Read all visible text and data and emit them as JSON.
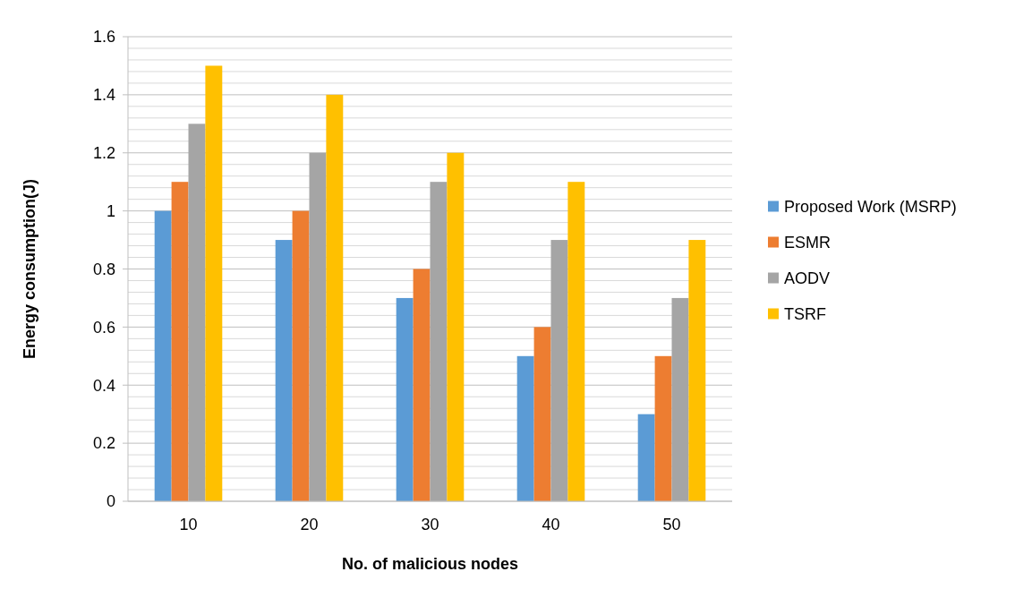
{
  "chart_data": {
    "type": "bar",
    "xlabel": "No. of malicious nodes",
    "ylabel": "Energy consumption(J)",
    "categories": [
      "10",
      "20",
      "30",
      "40",
      "50"
    ],
    "series": [
      {
        "name": "Proposed Work (MSRP)",
        "color": "#5b9bd5",
        "values": [
          1.0,
          0.9,
          0.7,
          0.5,
          0.3
        ]
      },
      {
        "name": "ESMR",
        "color": "#ed7d31",
        "values": [
          1.1,
          1.0,
          0.8,
          0.6,
          0.5
        ]
      },
      {
        "name": "AODV",
        "color": "#a5a5a5",
        "values": [
          1.3,
          1.2,
          1.1,
          0.9,
          0.7
        ]
      },
      {
        "name": "TSRF",
        "color": "#ffc000",
        "values": [
          1.5,
          1.4,
          1.2,
          1.1,
          0.9
        ]
      }
    ],
    "ylim": [
      0,
      1.6
    ],
    "yticks": [
      {
        "value": 0,
        "label": "0"
      },
      {
        "value": 0.04,
        "label": null
      },
      {
        "value": 0.08,
        "label": null
      },
      {
        "value": 0.12,
        "label": null
      },
      {
        "value": 0.16,
        "label": null
      },
      {
        "value": 0.2,
        "label": "0.2"
      },
      {
        "value": 0.24,
        "label": null
      },
      {
        "value": 0.28,
        "label": null
      },
      {
        "value": 0.32,
        "label": null
      },
      {
        "value": 0.36,
        "label": null
      },
      {
        "value": 0.4,
        "label": "0.4"
      },
      {
        "value": 0.44,
        "label": null
      },
      {
        "value": 0.48,
        "label": null
      },
      {
        "value": 0.52,
        "label": null
      },
      {
        "value": 0.56,
        "label": null
      },
      {
        "value": 0.6,
        "label": "0.6"
      },
      {
        "value": 0.64,
        "label": null
      },
      {
        "value": 0.68,
        "label": null
      },
      {
        "value": 0.72,
        "label": null
      },
      {
        "value": 0.76,
        "label": null
      },
      {
        "value": 0.8,
        "label": "0.8"
      },
      {
        "value": 0.84,
        "label": null
      },
      {
        "value": 0.88,
        "label": null
      },
      {
        "value": 0.92,
        "label": null
      },
      {
        "value": 0.96,
        "label": null
      },
      {
        "value": 1,
        "label": "1"
      },
      {
        "value": 1.04,
        "label": null
      },
      {
        "value": 1.08,
        "label": null
      },
      {
        "value": 1.12,
        "label": null
      },
      {
        "value": 1.16,
        "label": null
      },
      {
        "value": 1.2,
        "label": "1.2"
      },
      {
        "value": 1.24,
        "label": null
      },
      {
        "value": 1.28,
        "label": null
      },
      {
        "value": 1.32,
        "label": null
      },
      {
        "value": 1.36,
        "label": null
      },
      {
        "value": 1.4,
        "label": "1.4"
      },
      {
        "value": 1.44,
        "label": null
      },
      {
        "value": 1.48,
        "label": null
      },
      {
        "value": 1.52,
        "label": null
      },
      {
        "value": 1.56,
        "label": null
      },
      {
        "value": 1.6,
        "label": "1.6"
      }
    ],
    "grid": "y",
    "legend": "right"
  }
}
